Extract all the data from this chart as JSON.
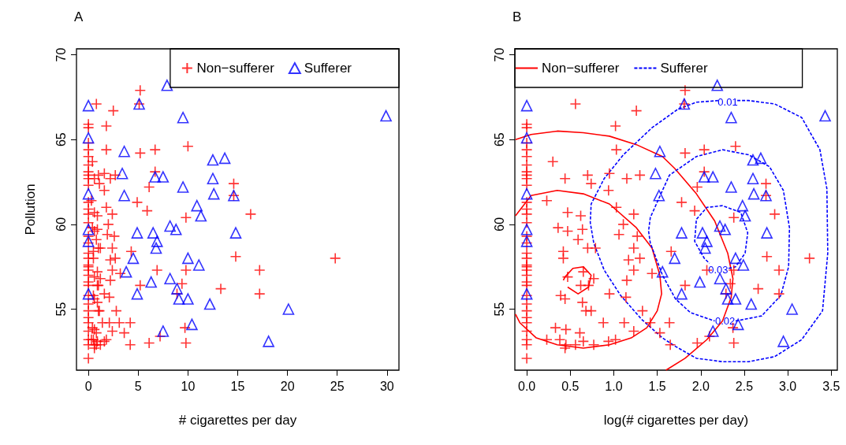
{
  "chart_data": [
    {
      "type": "scatter",
      "title": "A",
      "xlabel": "# cigarettes per day",
      "ylabel": "Pollution",
      "xlim": [
        -1.2,
        31.2
      ],
      "ylim": [
        51.4,
        70.35
      ],
      "xticks": [
        0,
        5,
        10,
        15,
        20,
        25,
        30
      ],
      "yticks": [
        55,
        60,
        65,
        70
      ],
      "legend": "top right",
      "series": [
        {
          "name": "Non−sufferer",
          "color": "#ff0000",
          "marker": "cross",
          "x": [
            0,
            0,
            0,
            0,
            0,
            0,
            0,
            0,
            0,
            0,
            0,
            0,
            0,
            0,
            0,
            0,
            0,
            0,
            0,
            0,
            0,
            0,
            0,
            0,
            0,
            0,
            0,
            0,
            0,
            0,
            0,
            0,
            0,
            0.8,
            2.5,
            1.8,
            1.8,
            0.4,
            0.6,
            1.0,
            1.1,
            1.6,
            2.2,
            2.7,
            1.6,
            0.3,
            0.6,
            0.9,
            1.8,
            2.4,
            2.0,
            0.4,
            0.6,
            0.9,
            0.8,
            1.9,
            2.6,
            1.0,
            1.2,
            0.5,
            0.5,
            2.4,
            2.2,
            2.7,
            2.4,
            2.2,
            3.2,
            0.6,
            0.9,
            1.2,
            0.9,
            1.0,
            1.6,
            2.1,
            0.5,
            0.6,
            0.9,
            1.0,
            1.1,
            2.8,
            1.4,
            2.1,
            3.1,
            4.2,
            3.6,
            0.4,
            0.6,
            0.8,
            0.3,
            0.5,
            0.6,
            0.8,
            0.9,
            1.2,
            1.6,
            1.8,
            2.4,
            0.6,
            4.2,
            4.3,
            5.2,
            5.1,
            5.2,
            6.7,
            10.0,
            6.7,
            6.1,
            4.9,
            5.9,
            14.6,
            14.6,
            16.3,
            9.8,
            14.8,
            24.8,
            6.9,
            9.8,
            17.2,
            5.2,
            13.3,
            17.2,
            9.4,
            8.9,
            9.7,
            9.8,
            6.1,
            7.2
          ],
          "values": [
            65.9,
            65.7,
            64.8,
            64.4,
            64.0,
            63.5,
            63.1,
            62.9,
            62.7,
            62.3,
            61.3,
            60.9,
            60.6,
            60.1,
            59.3,
            58.9,
            58.3,
            58.0,
            57.6,
            57.5,
            57.3,
            57.0,
            56.6,
            56.4,
            55.8,
            55.3,
            54.9,
            54.5,
            54.2,
            53.7,
            53.2,
            52.9,
            52.1,
            67.1,
            66.7,
            65.8,
            64.4,
            63.7,
            62.7,
            62.9,
            62.4,
            63.0,
            62.7,
            62.9,
            62.0,
            61.4,
            60.7,
            60.5,
            61.0,
            60.6,
            60.0,
            59.8,
            59.6,
            59.7,
            59.1,
            59.4,
            59.3,
            58.6,
            58.6,
            58.4,
            58.0,
            58.6,
            57.9,
            58.0,
            57.3,
            56.7,
            57.1,
            56.9,
            57.2,
            56.8,
            56.4,
            56.4,
            55.9,
            55.7,
            55.8,
            55.6,
            55.4,
            54.9,
            54.9,
            54.9,
            54.2,
            54.2,
            54.2,
            54.2,
            53.6,
            53.9,
            53.8,
            53.6,
            53.2,
            53.2,
            52.9,
            52.9,
            53.1,
            52.9,
            53.1,
            53.2,
            53.7,
            52.7,
            52.9,
            58.4,
            67.9,
            67.1,
            64.2,
            64.4,
            64.6,
            63.1,
            62.2,
            61.3,
            60.8,
            62.4,
            61.7,
            60.6,
            60.4,
            58.1,
            58.0,
            57.3,
            57.3,
            57.3,
            56.4,
            56.2,
            55.9,
            56.5,
            55.9,
            53.9,
            53.0,
            53.0,
            53.4
          ]
        },
        {
          "name": "Sufferer",
          "color": "#0000ff",
          "marker": "triangle",
          "x": [
            0,
            0,
            0,
            0,
            0,
            0,
            3.6,
            3.4,
            3.6,
            3.8,
            4.5,
            7.9,
            5.1,
            9.5,
            29.9,
            12.5,
            13.7,
            6.7,
            7.5,
            12.5,
            9.5,
            12.6,
            14.6,
            10.9,
            11.3,
            8.2,
            8.8,
            4.9,
            6.5,
            6.9,
            6.8,
            14.8,
            10.0,
            11.1,
            8.2,
            6.3,
            4.9,
            8.9,
            9.1,
            10.0,
            12.2,
            20.1,
            10.4,
            7.5,
            18.1
          ],
          "values": [
            67.0,
            65.1,
            61.8,
            59.7,
            59.0,
            55.9,
            64.3,
            63.0,
            61.7,
            57.2,
            58.0,
            68.2,
            67.1,
            66.3,
            66.4,
            63.8,
            63.9,
            62.8,
            62.8,
            62.7,
            62.2,
            61.8,
            61.7,
            61.1,
            60.5,
            59.9,
            59.7,
            59.5,
            59.5,
            59.0,
            58.6,
            59.5,
            58.0,
            57.6,
            56.8,
            56.6,
            55.9,
            56.2,
            55.6,
            55.6,
            55.3,
            55.0,
            54.1,
            53.7,
            53.1
          ]
        }
      ]
    },
    {
      "type": "scatter",
      "title": "B",
      "xlabel": "log(# cigarettes per day)",
      "xlim": [
        -0.137,
        3.57
      ],
      "ylim": [
        51.4,
        70.35
      ],
      "xticks": [
        {
          "value": 0,
          "label": "0.0"
        },
        0.5,
        {
          "value": 1,
          "label": "1.0"
        },
        1.5,
        {
          "value": 2,
          "label": "2.0"
        },
        2.5,
        {
          "value": 3,
          "label": "3.0"
        },
        3.5
      ],
      "yticks": [
        55,
        60,
        65,
        70
      ],
      "legend": "top",
      "annotations": [
        {
          "text": "0.01",
          "x": 2.31,
          "y": 67.2
        },
        {
          "text": "0.02",
          "x": 2.28,
          "y": 54.3
        },
        {
          "text": "0.03",
          "x": 2.2,
          "y": 57.3
        }
      ],
      "series": [
        {
          "color": "#ff0000",
          "marker": "cross",
          "x": [
            0,
            0,
            0,
            0,
            0,
            0,
            0,
            0,
            0,
            0,
            0,
            0,
            0,
            0,
            0,
            0,
            0,
            0,
            0,
            0,
            0,
            0,
            0,
            0,
            0,
            0,
            0,
            0,
            0,
            0,
            0,
            0,
            0,
            0.56,
            1.26,
            1.02,
            1.03,
            0.3,
            0.44,
            0.7,
            0.74,
            0.95,
            1.15,
            1.3,
            0.94,
            0.23,
            0.47,
            0.62,
            1.03,
            1.23,
            1.11,
            0.36,
            0.47,
            0.64,
            0.59,
            1.06,
            1.27,
            0.7,
            0.79,
            0.42,
            0.42,
            1.23,
            1.17,
            1.3,
            1.23,
            1.15,
            1.44,
            0.47,
            0.65,
            0.77,
            0.62,
            0.71,
            0.95,
            1.14,
            0.39,
            0.44,
            0.64,
            0.68,
            0.74,
            1.33,
            0.88,
            1.12,
            1.42,
            1.64,
            1.53,
            0.33,
            0.45,
            0.61,
            0.23,
            0.38,
            0.45,
            0.56,
            0.65,
            0.77,
            0.94,
            1.02,
            1.23,
            0.44,
            1.65,
            1.66,
            1.82,
            1.81,
            1.82,
            2.04,
            2.4,
            2.04,
            1.96,
            1.78,
            1.93,
            2.75,
            2.75,
            2.85,
            2.38,
            2.76,
            3.25,
            2.07,
            2.38,
            2.9,
            1.82,
            2.66,
            2.9,
            2.34,
            2.29,
            2.37,
            2.38,
            1.96,
            2.1
          ],
          "values": [
            65.9,
            65.7,
            64.8,
            64.4,
            64.0,
            63.5,
            63.1,
            62.9,
            62.7,
            62.3,
            61.3,
            60.9,
            60.6,
            60.1,
            59.3,
            58.9,
            58.3,
            58.0,
            57.6,
            57.5,
            57.3,
            57.0,
            56.6,
            56.4,
            55.8,
            55.3,
            54.9,
            54.5,
            54.2,
            53.7,
            53.2,
            52.9,
            52.1,
            67.1,
            66.7,
            65.8,
            64.4,
            63.7,
            62.7,
            62.9,
            62.4,
            63.0,
            62.7,
            62.9,
            62.0,
            61.4,
            60.7,
            60.5,
            61.0,
            60.6,
            60.0,
            59.8,
            59.6,
            59.7,
            59.1,
            59.4,
            59.3,
            58.6,
            58.6,
            58.4,
            58.0,
            58.6,
            57.9,
            58.0,
            57.3,
            56.7,
            57.1,
            56.9,
            57.2,
            56.8,
            56.4,
            56.4,
            55.9,
            55.7,
            55.8,
            55.6,
            55.4,
            54.9,
            54.9,
            54.9,
            54.2,
            54.2,
            54.2,
            54.2,
            53.6,
            53.9,
            53.8,
            53.6,
            53.2,
            53.2,
            52.9,
            52.9,
            53.1,
            52.9,
            53.1,
            53.2,
            53.7,
            52.7,
            52.9,
            58.4,
            67.9,
            67.1,
            64.2,
            64.4,
            64.6,
            63.1,
            62.2,
            61.3,
            60.8,
            62.4,
            61.7,
            60.6,
            60.4,
            58.1,
            58.0,
            57.3,
            57.3,
            57.3,
            56.4,
            56.2,
            55.9,
            56.5,
            55.9,
            53.9,
            53.0,
            53.0,
            53.4
          ]
        },
        {
          "color": "#0000ff",
          "marker": "triangle",
          "x": [
            0,
            0,
            0,
            0,
            0,
            0,
            1.53,
            1.48,
            1.52,
            1.56,
            1.7,
            2.19,
            1.81,
            2.35,
            3.43,
            2.6,
            2.69,
            2.04,
            2.14,
            2.6,
            2.35,
            2.61,
            2.75,
            2.48,
            2.51,
            2.22,
            2.28,
            1.78,
            2.02,
            2.07,
            2.05,
            2.76,
            2.4,
            2.49,
            2.22,
            1.99,
            1.78,
            2.29,
            2.31,
            2.4,
            2.58,
            3.05,
            2.43,
            2.14,
            2.95
          ],
          "values": [
            67.0,
            65.1,
            61.8,
            59.7,
            59.0,
            55.9,
            64.3,
            63.0,
            61.7,
            57.2,
            58.0,
            68.2,
            67.1,
            66.3,
            66.4,
            63.8,
            63.9,
            62.8,
            62.8,
            62.7,
            62.2,
            61.8,
            61.7,
            61.1,
            60.5,
            59.9,
            59.7,
            59.5,
            59.5,
            59.0,
            58.6,
            59.5,
            58.0,
            57.6,
            56.8,
            56.6,
            55.9,
            56.2,
            55.6,
            55.6,
            55.3,
            55.0,
            54.1,
            53.7,
            53.1
          ]
        },
        {
          "name": "Non−sufferer",
          "type": "line",
          "color": "#ff0000",
          "line_style": "solid",
          "x": [
            -0.13,
            0.05,
            0.35,
            0.65,
            0.95,
            1.26,
            1.56,
            1.7,
            1.95,
            2.16,
            2.31,
            2.37,
            2.35,
            2.25,
            2.07,
            1.82,
            1.6
          ],
          "values": [
            65.0,
            65.3,
            65.5,
            65.4,
            65.2,
            64.7,
            64.0,
            63.3,
            61.8,
            60.2,
            58.3,
            56.8,
            55.7,
            54.3,
            53.2,
            52.1,
            51.4
          ]
        },
        {
          "type": "line",
          "color": "#ff0000",
          "line_style": "solid",
          "x": [
            -0.13,
            0.05,
            0.35,
            0.65,
            0.95,
            1.26,
            1.44,
            1.53,
            1.55,
            1.5,
            1.38,
            1.2,
            0.95,
            0.65,
            0.35,
            0.11,
            -0.08,
            -0.13
          ],
          "values": [
            60.5,
            61.7,
            62.0,
            61.8,
            61.2,
            59.8,
            58.6,
            57.0,
            55.9,
            54.9,
            53.9,
            53.3,
            52.9,
            52.7,
            52.9,
            53.3,
            54.2,
            54.7
          ]
        },
        {
          "type": "line",
          "color": "#ff0000",
          "line_style": "solid",
          "x": [
            0.42,
            0.44,
            0.53,
            0.65,
            0.74,
            0.71,
            0.59,
            0.47
          ],
          "values": [
            56.7,
            56.9,
            57.4,
            57.5,
            57.0,
            56.3,
            55.9,
            56.3
          ]
        },
        {
          "name": "Sufferer",
          "type": "line",
          "color": "#0000ff",
          "line_style": "dashed",
          "x": [
            2.42,
            2.55,
            2.85,
            3.16,
            3.37,
            3.45,
            3.46,
            3.4,
            3.16,
            2.85,
            2.55,
            2.25,
            1.95,
            1.71,
            1.56,
            1.32,
            1.08,
            0.89,
            0.77,
            0.73,
            0.74,
            0.89,
            1.11,
            1.44,
            1.74,
            1.95,
            2.2
          ],
          "values": [
            67.3,
            67.3,
            67.1,
            66.3,
            64.4,
            62.1,
            58.3,
            54.9,
            53.2,
            52.2,
            51.9,
            51.9,
            52.1,
            52.8,
            53.3,
            54.4,
            55.8,
            57.3,
            58.9,
            60.1,
            61.2,
            62.7,
            64.1,
            65.7,
            66.8,
            67.2,
            67.3
          ]
        },
        {
          "type": "line",
          "color": "#0000ff",
          "line_style": "dashed",
          "x": [
            2.4,
            2.7,
            2.92,
            3.01,
            3.02,
            2.95,
            2.79,
            2.55,
            2.25,
            1.95,
            1.64,
            1.56,
            1.42,
            1.4,
            1.42,
            1.56,
            1.71,
            1.88,
            2.16
          ],
          "values": [
            54.3,
            54.6,
            55.8,
            57.5,
            59.8,
            62.0,
            63.4,
            64.1,
            64.4,
            64.0,
            62.9,
            62.0,
            60.4,
            59.6,
            58.9,
            57.0,
            55.6,
            54.8,
            54.3
          ]
        },
        {
          "type": "line",
          "color": "#0000ff",
          "line_style": "dashed",
          "x": [
            2.32,
            2.4,
            2.51,
            2.54,
            2.46,
            2.25,
            2.07,
            1.95,
            1.93,
            2.04,
            2.1
          ],
          "values": [
            57.4,
            57.5,
            58.3,
            59.5,
            60.7,
            61.1,
            61.0,
            60.3,
            59.0,
            58.0,
            57.7
          ]
        }
      ]
    }
  ]
}
